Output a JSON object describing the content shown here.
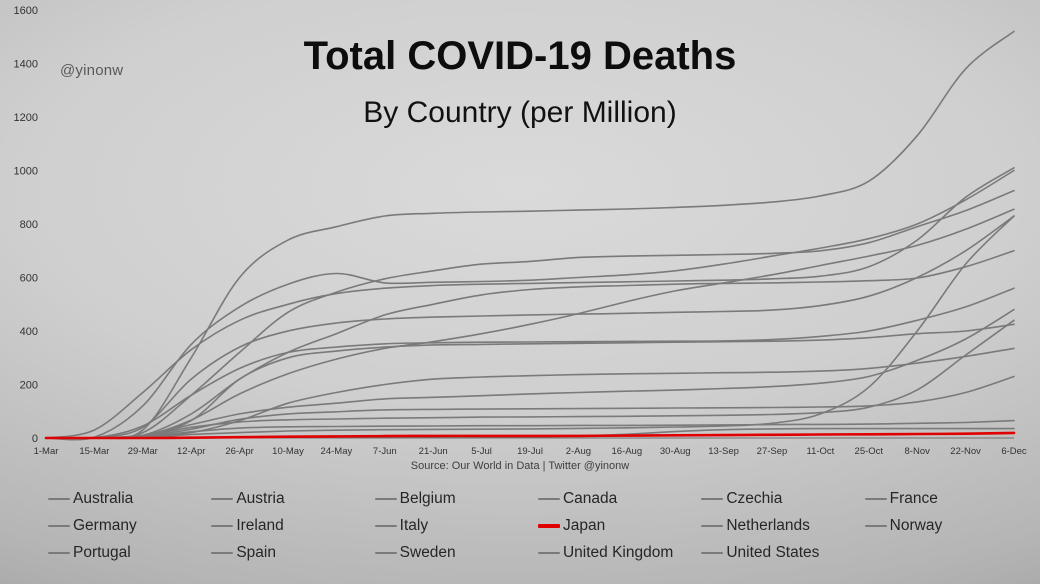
{
  "watermark": "@yinonw",
  "title": "Total COVID-19 Deaths",
  "subtitle": "By Country (per Million)",
  "source": "Source: Our World in Data | Twitter @yinonw",
  "chart_data": {
    "type": "line",
    "title": "Total COVID-19 Deaths By Country (per Million)",
    "xlabel": "",
    "ylabel": "",
    "ylim": [
      0,
      1600
    ],
    "y_ticks": [
      0,
      200,
      400,
      600,
      800,
      1000,
      1200,
      1400,
      1600
    ],
    "grid": false,
    "legend_position": "bottom",
    "x_tick_labels": [
      "1-Mar",
      "15-Mar",
      "29-Mar",
      "12-Apr",
      "26-Apr",
      "10-May",
      "24-May",
      "7-Jun",
      "21-Jun",
      "5-Jul",
      "19-Jul",
      "2-Aug",
      "16-Aug",
      "30-Aug",
      "13-Sep",
      "27-Sep",
      "11-Oct",
      "25-Oct",
      "8-Nov",
      "22-Nov",
      "6-Dec"
    ],
    "line_color_default": "#7a7a7a",
    "highlight_color": "#e00000",
    "series": [
      {
        "name": "Australia",
        "color": "#7a7a7a",
        "width": 1.6,
        "highlight": false,
        "values": [
          0,
          0,
          1,
          2,
          3,
          4,
          4,
          4,
          4,
          4,
          4,
          8,
          14,
          24,
          31,
          34,
          35,
          35,
          35,
          35,
          35
        ]
      },
      {
        "name": "Austria",
        "color": "#7a7a7a",
        "width": 1.6,
        "highlight": false,
        "values": [
          0,
          1,
          9,
          40,
          60,
          68,
          71,
          74,
          76,
          78,
          79,
          80,
          81,
          83,
          85,
          88,
          95,
          115,
          180,
          310,
          440
        ]
      },
      {
        "name": "Belgium",
        "color": "#7a7a7a",
        "width": 1.6,
        "highlight": false,
        "values": [
          0,
          1,
          30,
          300,
          600,
          740,
          790,
          830,
          840,
          845,
          848,
          852,
          856,
          862,
          870,
          882,
          905,
          960,
          1130,
          1380,
          1520
        ]
      },
      {
        "name": "Canada",
        "color": "#7a7a7a",
        "width": 1.6,
        "highlight": false,
        "values": [
          0,
          0,
          3,
          20,
          65,
          130,
          170,
          200,
          220,
          228,
          233,
          237,
          240,
          242,
          244,
          246,
          250,
          260,
          280,
          305,
          335
        ]
      },
      {
        "name": "Czechia",
        "color": "#7a7a7a",
        "width": 1.6,
        "highlight": false,
        "values": [
          0,
          0,
          1,
          13,
          20,
          26,
          29,
          31,
          32,
          33,
          34,
          36,
          38,
          41,
          45,
          55,
          90,
          190,
          400,
          650,
          830
        ]
      },
      {
        "name": "France",
        "color": "#7a7a7a",
        "width": 1.6,
        "highlight": false,
        "values": [
          0,
          2,
          40,
          220,
          340,
          400,
          430,
          445,
          452,
          456,
          460,
          463,
          466,
          470,
          473,
          478,
          495,
          530,
          600,
          700,
          830
        ]
      },
      {
        "name": "Germany",
        "color": "#7a7a7a",
        "width": 1.6,
        "highlight": false,
        "values": [
          0,
          0,
          6,
          33,
          70,
          90,
          98,
          105,
          107,
          108,
          109,
          110,
          111,
          112,
          113,
          114,
          116,
          120,
          135,
          170,
          230
        ]
      },
      {
        "name": "Ireland",
        "color": "#7a7a7a",
        "width": 1.6,
        "highlight": false,
        "values": [
          0,
          0,
          9,
          65,
          220,
          300,
          325,
          340,
          348,
          350,
          352,
          354,
          356,
          358,
          360,
          362,
          366,
          375,
          390,
          400,
          425
        ]
      },
      {
        "name": "Italy",
        "color": "#7a7a7a",
        "width": 1.6,
        "highlight": false,
        "values": [
          0,
          30,
          170,
          330,
          440,
          500,
          540,
          560,
          570,
          575,
          578,
          581,
          584,
          587,
          590,
          595,
          605,
          640,
          740,
          900,
          1010
        ]
      },
      {
        "name": "Japan",
        "color": "#e00000",
        "width": 2.6,
        "highlight": true,
        "values": [
          0,
          0,
          0,
          1,
          3,
          5,
          6,
          7,
          8,
          8,
          8,
          8,
          9,
          10,
          11,
          12,
          13,
          14,
          15,
          16,
          19
        ]
      },
      {
        "name": "Netherlands",
        "color": "#7a7a7a",
        "width": 1.6,
        "highlight": false,
        "values": [
          0,
          1,
          45,
          160,
          260,
          320,
          340,
          352,
          356,
          358,
          359,
          360,
          361,
          362,
          363,
          368,
          380,
          400,
          440,
          490,
          560
        ]
      },
      {
        "name": "Norway",
        "color": "#7a7a7a",
        "width": 1.6,
        "highlight": false,
        "values": [
          0,
          0,
          4,
          23,
          37,
          42,
          43,
          44,
          45,
          46,
          46,
          47,
          47,
          48,
          49,
          50,
          51,
          52,
          55,
          58,
          65
        ]
      },
      {
        "name": "Portugal",
        "color": "#7a7a7a",
        "width": 1.6,
        "highlight": false,
        "values": [
          0,
          0,
          10,
          50,
          90,
          115,
          130,
          146,
          152,
          158,
          165,
          170,
          175,
          179,
          185,
          192,
          205,
          230,
          290,
          370,
          480
        ]
      },
      {
        "name": "Spain",
        "color": "#7a7a7a",
        "width": 1.6,
        "highlight": false,
        "values": [
          0,
          3,
          120,
          350,
          490,
          575,
          615,
          580,
          582,
          585,
          590,
          600,
          610,
          625,
          650,
          680,
          710,
          745,
          800,
          890,
          1000
        ]
      },
      {
        "name": "Sweden",
        "color": "#7a7a7a",
        "width": 1.6,
        "highlight": false,
        "values": [
          0,
          1,
          10,
          90,
          220,
          320,
          390,
          460,
          500,
          535,
          555,
          565,
          570,
          575,
          578,
          580,
          583,
          588,
          598,
          640,
          700
        ]
      },
      {
        "name": "United Kingdom",
        "color": "#7a7a7a",
        "width": 1.6,
        "highlight": false,
        "values": [
          0,
          1,
          20,
          160,
          320,
          470,
          545,
          595,
          625,
          650,
          660,
          675,
          680,
          683,
          686,
          690,
          700,
          730,
          790,
          850,
          925
        ]
      },
      {
        "name": "United States",
        "color": "#7a7a7a",
        "width": 1.6,
        "highlight": false,
        "values": [
          0,
          0,
          8,
          67,
          165,
          240,
          295,
          335,
          360,
          390,
          425,
          465,
          510,
          550,
          580,
          610,
          645,
          680,
          720,
          780,
          855
        ]
      }
    ]
  }
}
